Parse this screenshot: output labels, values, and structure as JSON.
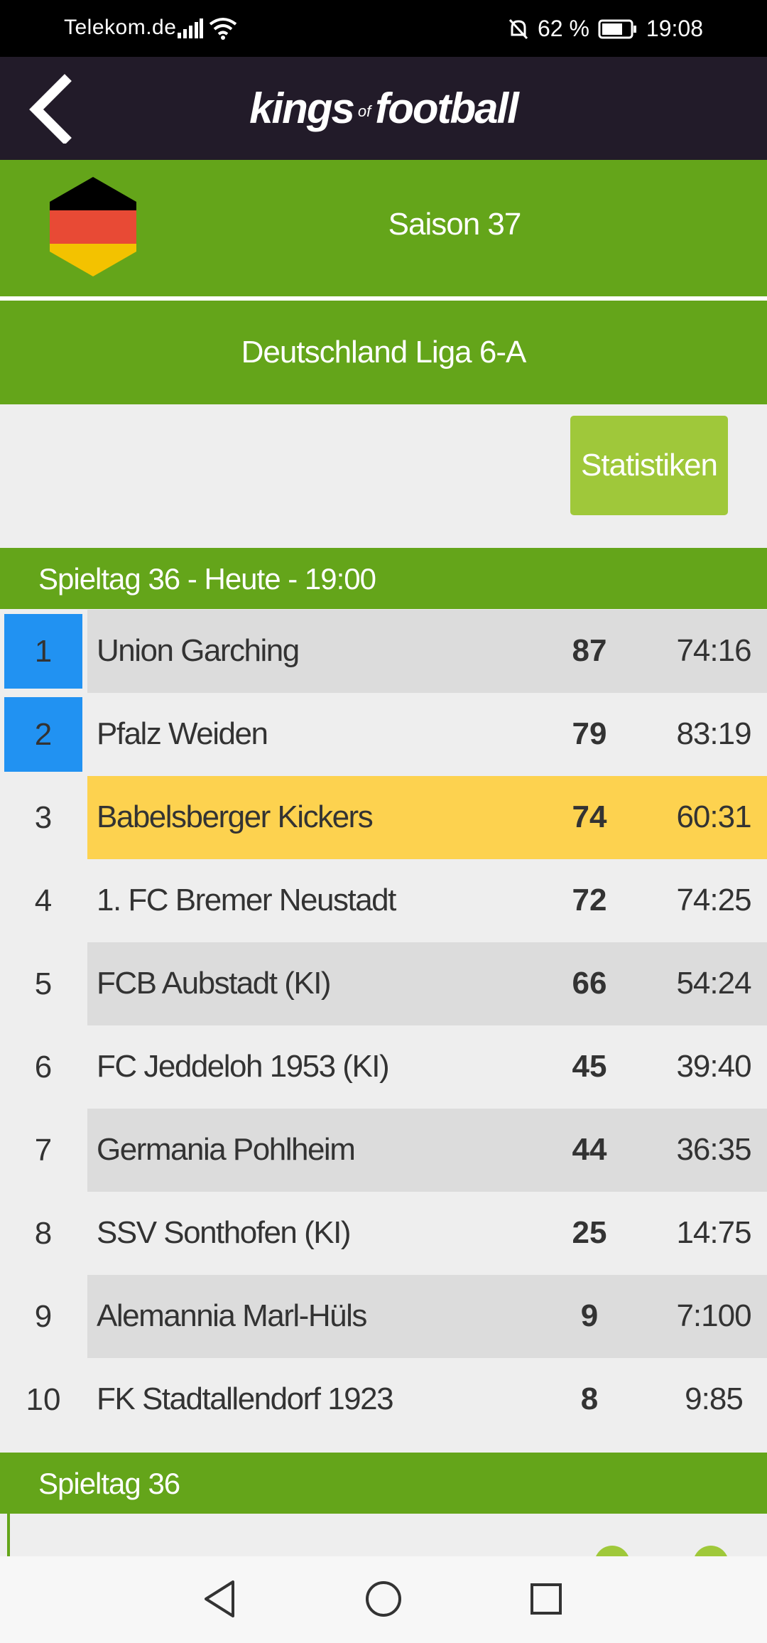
{
  "status_bar": {
    "carrier": "Telekom.de",
    "battery": "62 %",
    "time": "19:08",
    "icons": [
      "signal-icon",
      "wifi-icon",
      "mute-icon",
      "battery-icon"
    ]
  },
  "header": {
    "logo_main": "kings",
    "logo_of": "of",
    "logo_end": "football",
    "back_icon": "chevron-left-icon"
  },
  "season": {
    "flag": "germany-flag-icon",
    "title": "Saison 37"
  },
  "league": {
    "name": "Deutschland Liga 6-A"
  },
  "stats_button": "Statistiken",
  "matchday_header": "Spieltag 36 - Heute - 19:00",
  "table": {
    "rows": [
      {
        "rank": "1",
        "team": "Union Garching",
        "points": "87",
        "goals": "74:16"
      },
      {
        "rank": "2",
        "team": "Pfalz Weiden",
        "points": "79",
        "goals": "83:19"
      },
      {
        "rank": "3",
        "team": "Babelsberger Kickers",
        "points": "74",
        "goals": "60:31"
      },
      {
        "rank": "4",
        "team": "1. FC Bremer Neustadt",
        "points": "72",
        "goals": "74:25"
      },
      {
        "rank": "5",
        "team": "FCB Aubstadt (KI)",
        "points": "66",
        "goals": "54:24"
      },
      {
        "rank": "6",
        "team": "FC Jeddeloh 1953 (KI)",
        "points": "45",
        "goals": "39:40"
      },
      {
        "rank": "7",
        "team": "Germania Pohlheim",
        "points": "44",
        "goals": "36:35"
      },
      {
        "rank": "8",
        "team": "SSV Sonthofen (KI)",
        "points": "25",
        "goals": "14:75"
      },
      {
        "rank": "9",
        "team": "Alemannia Marl-Hüls",
        "points": "9",
        "goals": "7:100"
      },
      {
        "rank": "10",
        "team": "FK Stadtallendorf 1923",
        "points": "8",
        "goals": "9:85"
      }
    ]
  },
  "matchday_section": "Spieltag 36",
  "colors": {
    "green": "#64a51a",
    "light_green": "#9fc83a",
    "promotion_blue": "#2192f2",
    "own_team_yellow": "#fdd24f",
    "header_dark": "#221b29"
  },
  "nav": [
    "back-triangle-icon",
    "home-circle-icon",
    "recents-square-icon"
  ]
}
